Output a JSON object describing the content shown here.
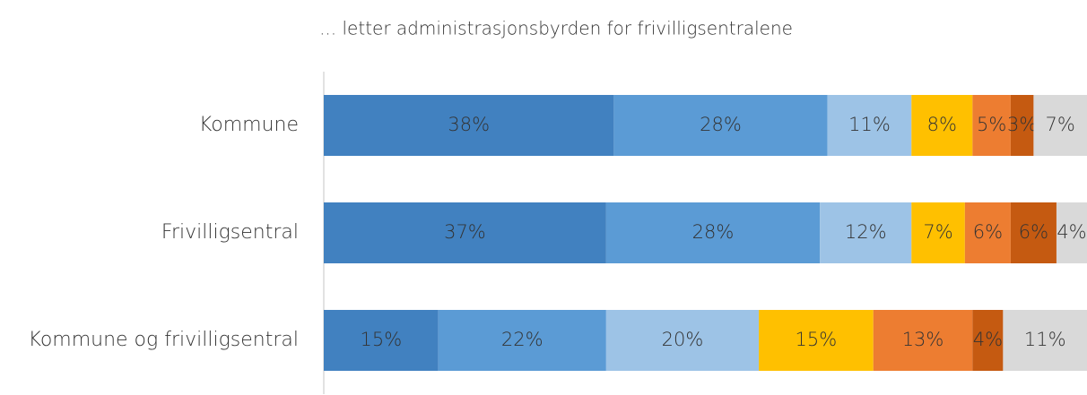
{
  "chart_data": {
    "type": "stacked_bar_horizontal",
    "title": "... letter administrasjonsbyrden for frivilligsentralene",
    "categories": [
      "Kommune",
      "Frivilligsentral",
      "Kommune og frivilligsentral"
    ],
    "xlim": [
      0,
      100
    ],
    "series": [
      {
        "color": "#4181c0",
        "values": [
          38,
          37,
          15
        ],
        "value_labels": [
          "38%",
          "37%",
          "15%"
        ]
      },
      {
        "color": "#5b9bd5",
        "values": [
          28,
          28,
          22
        ],
        "value_labels": [
          "28%",
          "28%",
          "22%"
        ]
      },
      {
        "color": "#9dc3e6",
        "values": [
          11,
          12,
          20
        ],
        "value_labels": [
          "11%",
          "12%",
          "20%"
        ]
      },
      {
        "color": "#ffc000",
        "values": [
          8,
          7,
          15
        ],
        "value_labels": [
          "8%",
          "7%",
          "15%"
        ]
      },
      {
        "color": "#ed7d31",
        "values": [
          5,
          6,
          13
        ],
        "value_labels": [
          "5%",
          "6%",
          "13%"
        ]
      },
      {
        "color": "#c55a11",
        "values": [
          3,
          6,
          4
        ],
        "value_labels": [
          "3%",
          "6%",
          "4%"
        ]
      },
      {
        "color": "#d9d9d9",
        "values": [
          7,
          4,
          11
        ],
        "value_labels": [
          "7%",
          "4%",
          "11%"
        ]
      }
    ]
  }
}
